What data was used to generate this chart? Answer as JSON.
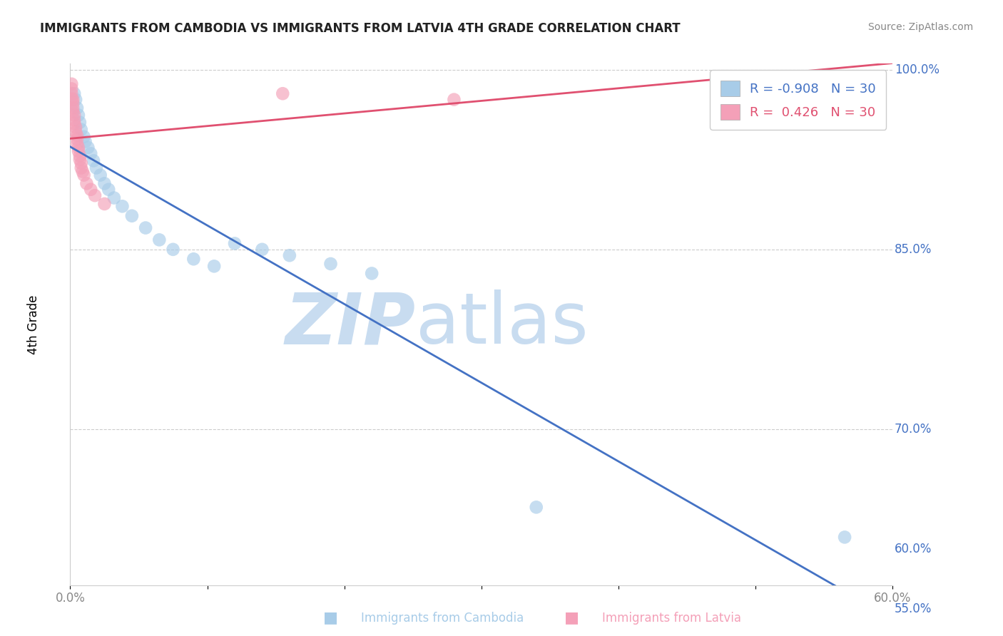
{
  "title": "IMMIGRANTS FROM CAMBODIA VS IMMIGRANTS FROM LATVIA 4TH GRADE CORRELATION CHART",
  "source_text": "Source: ZipAtlas.com",
  "ylabel": "4th Grade",
  "x_label_bottom": "Immigrants from Cambodia",
  "x_label_bottom2": "Immigrants from Latvia",
  "r_cambodia": -0.908,
  "n_cambodia": 30,
  "r_latvia": 0.426,
  "n_latvia": 30,
  "xlim": [
    0.0,
    0.6
  ],
  "ylim": [
    0.57,
    1.005
  ],
  "color_cambodia": "#A8CCE8",
  "color_latvia": "#F4A0B8",
  "line_color_cambodia": "#4472C4",
  "line_color_latvia": "#E05070",
  "axis_label_color": "#4472C4",
  "watermark_zip": "ZIP",
  "watermark_atlas": "atlas",
  "watermark_color": "#C8DCF0",
  "ytick_vals": [
    1.0,
    0.85,
    0.7,
    0.55,
    0.6
  ],
  "ytick_labels_right": [
    "100.0%",
    "85.0%",
    "70.0%",
    "55.0%",
    "60.0%"
  ],
  "grid_lines": [
    1.0,
    0.85,
    0.7,
    0.55
  ],
  "cambodia_x": [
    0.003,
    0.004,
    0.005,
    0.006,
    0.007,
    0.008,
    0.01,
    0.011,
    0.013,
    0.015,
    0.017,
    0.019,
    0.022,
    0.025,
    0.028,
    0.032,
    0.038,
    0.045,
    0.055,
    0.065,
    0.075,
    0.09,
    0.105,
    0.12,
    0.14,
    0.16,
    0.19,
    0.22,
    0.34,
    0.565
  ],
  "cambodia_y": [
    0.98,
    0.975,
    0.968,
    0.962,
    0.956,
    0.95,
    0.944,
    0.94,
    0.935,
    0.93,
    0.924,
    0.918,
    0.912,
    0.905,
    0.9,
    0.893,
    0.886,
    0.878,
    0.868,
    0.858,
    0.85,
    0.842,
    0.836,
    0.855,
    0.85,
    0.845,
    0.838,
    0.83,
    0.635,
    0.61
  ],
  "latvia_x": [
    0.001,
    0.001,
    0.001,
    0.001,
    0.002,
    0.002,
    0.002,
    0.002,
    0.003,
    0.003,
    0.003,
    0.004,
    0.004,
    0.005,
    0.005,
    0.005,
    0.006,
    0.006,
    0.007,
    0.007,
    0.008,
    0.008,
    0.009,
    0.01,
    0.012,
    0.015,
    0.018,
    0.025,
    0.155,
    0.28
  ],
  "latvia_y": [
    0.988,
    0.984,
    0.98,
    0.976,
    0.975,
    0.972,
    0.968,
    0.965,
    0.962,
    0.958,
    0.955,
    0.952,
    0.948,
    0.945,
    0.942,
    0.938,
    0.935,
    0.932,
    0.928,
    0.925,
    0.922,
    0.918,
    0.915,
    0.912,
    0.905,
    0.9,
    0.895,
    0.888,
    0.98,
    0.975
  ]
}
